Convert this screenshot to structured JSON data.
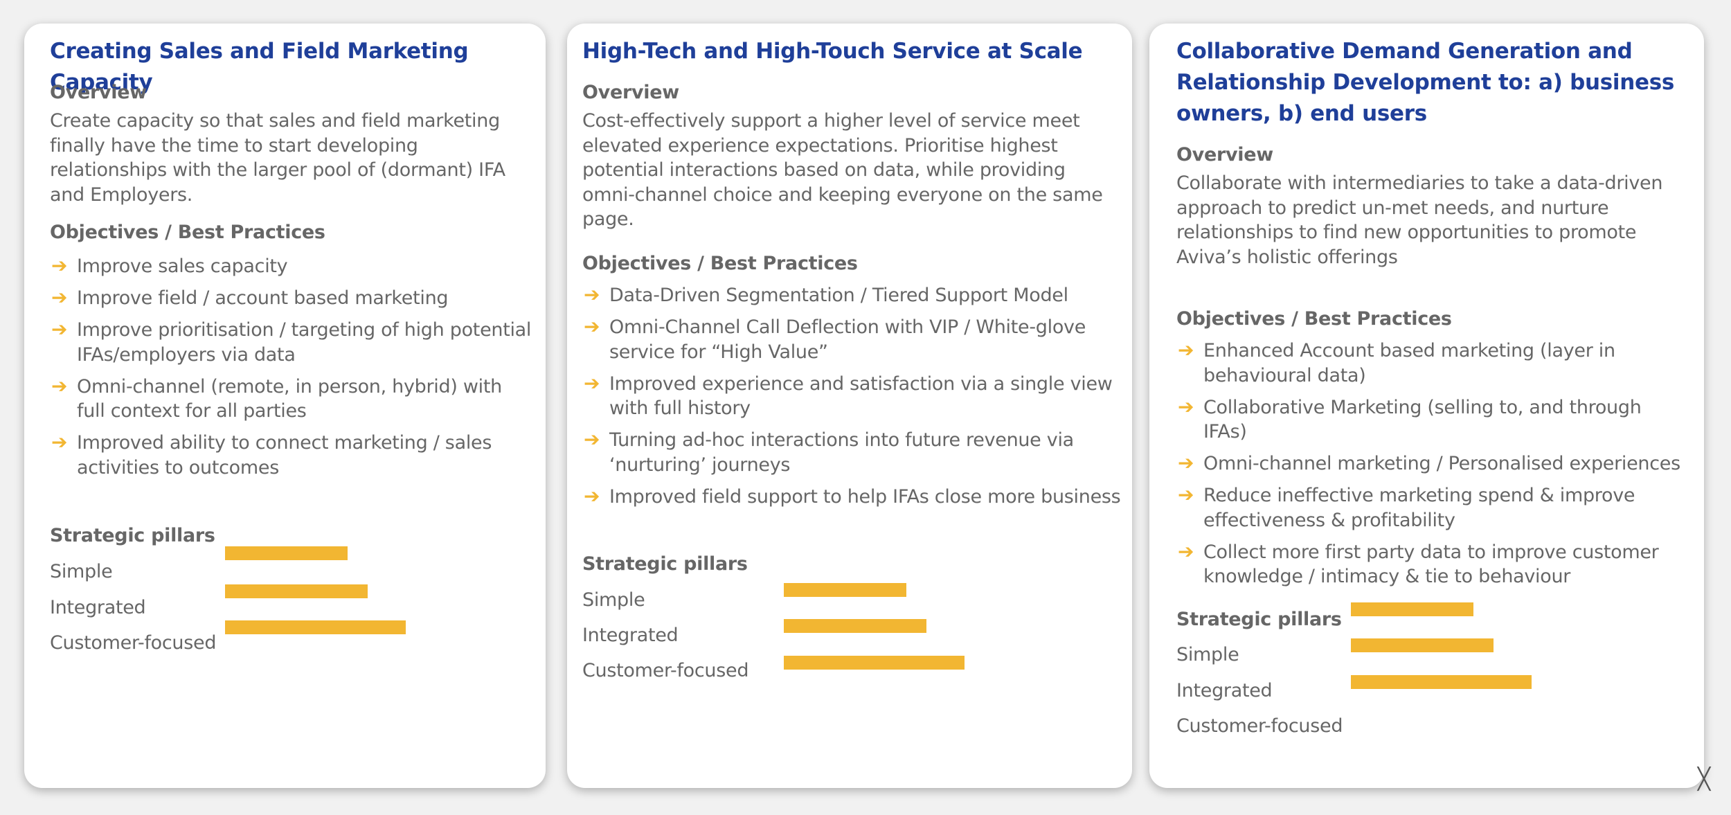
{
  "colors": {
    "title": "#1f3f99",
    "text": "#666666",
    "accent": "#f2b632",
    "card_bg": "#ffffff",
    "page_bg": "#f1f1f1"
  },
  "icons": {
    "arrow": "arrow-right-icon"
  },
  "cards": [
    {
      "title": "Creating Sales and Field Marketing Capacity",
      "overview_heading": "Overview",
      "overview": "Create capacity so that sales and field marketing finally have the time to start developing relationships with the larger pool of (dormant) IFA and Employers.",
      "objectives_heading": "Objectives / Best Practices",
      "objectives": [
        "Improve sales capacity",
        "Improve field / account based marketing",
        "Improve prioritisation / targeting of high potential IFAs/employers via data",
        "Omni-channel (remote, in person, hybrid) with full context for all parties",
        "Improved ability to connect marketing / sales activities to outcomes"
      ],
      "pillars_heading": "Strategic pillars",
      "pillars": [
        {
          "label": "Simple",
          "level": 0.61
        },
        {
          "label": "Integrated",
          "level": 0.71
        },
        {
          "label": "Customer-focused",
          "level": 0.9
        }
      ]
    },
    {
      "title": "High-Tech and High-Touch Service at Scale",
      "overview_heading": "Overview",
      "overview": "Cost-effectively support a higher level of service meet elevated experience expectations. Prioritise highest potential interactions based on data, while providing omni-channel choice and keeping everyone on the same page.",
      "objectives_heading": "Objectives / Best Practices",
      "objectives": [
        "Data-Driven Segmentation / Tiered Support Model",
        "Omni-Channel Call Deflection with VIP / White-glove service for “High Value”",
        "Improved experience and satisfaction via a single view with full history",
        "Turning ad-hoc interactions into future revenue via ‘nurturing’ journeys",
        "Improved field support to help IFAs close more business"
      ],
      "pillars_heading": "Strategic pillars",
      "pillars": [
        {
          "label": "Simple",
          "level": 0.61
        },
        {
          "label": "Integrated",
          "level": 0.71
        },
        {
          "label": "Customer-focused",
          "level": 0.9
        }
      ]
    },
    {
      "title": "Collaborative Demand Generation and Relationship Development to: a) business owners, b) end users",
      "overview_heading": "Overview",
      "overview": "Collaborate with intermediaries to take a data-driven approach to predict un-met needs, and nurture relationships to find new opportunities to promote Aviva’s holistic offerings",
      "objectives_heading": "Objectives / Best Practices",
      "objectives": [
        "Enhanced Account based marketing (layer in behavioural data)",
        "Collaborative Marketing (selling to, and through IFAs)",
        "Omni-channel marketing / Personalised experiences",
        "Reduce ineffective marketing spend & improve effectiveness & profitability",
        "Collect more first party data to improve customer knowledge / intimacy & tie to behaviour"
      ],
      "pillars_heading": "Strategic pillars",
      "pillars": [
        {
          "label": "Simple",
          "level": 0.61
        },
        {
          "label": "Integrated",
          "level": 0.71
        },
        {
          "label": "Customer-focused",
          "level": 0.9
        }
      ]
    }
  ]
}
